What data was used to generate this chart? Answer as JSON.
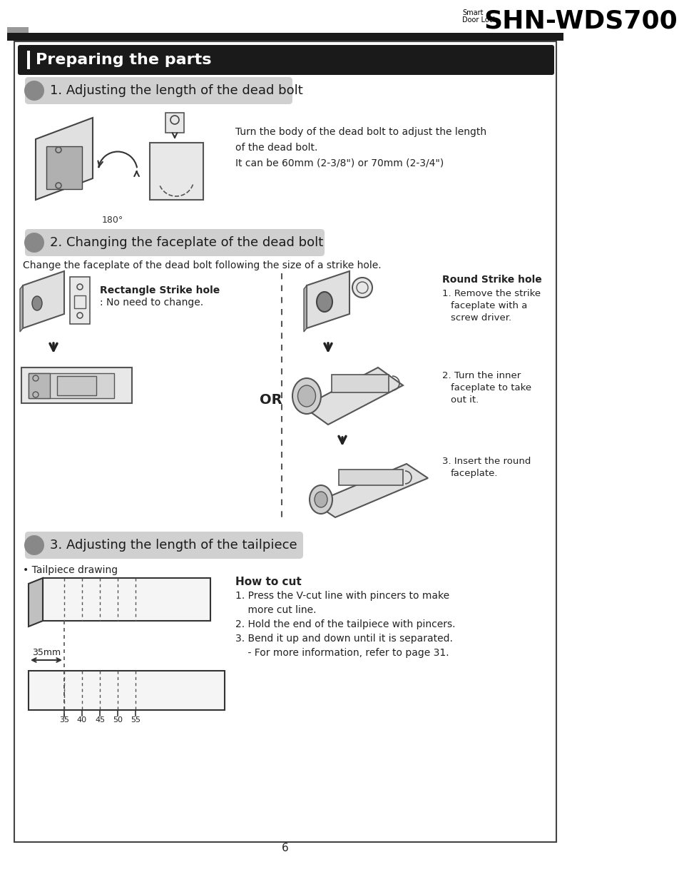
{
  "page_num": "6",
  "header_small_line1": "Smart",
  "header_small_line2": "Door Lock",
  "header_large": "SHN-WDS700",
  "section_title": "Preparing the parts",
  "sub1_title": "1. Adjusting the length of the dead bolt",
  "sub1_text": [
    "Turn the body of the dead bolt to adjust the length",
    "of the dead bolt.",
    "It can be 60mm (2-3/8\") or 70mm (2-3/4\")"
  ],
  "sub1_angle": "180°",
  "sub2_title": "2. Changing the faceplate of the dead bolt",
  "sub2_intro": "Change the faceplate of the dead bolt following the size of a strike hole.",
  "rect_label1": "Rectangle Strike hole",
  "rect_label2": ": No need to change.",
  "or_text": "OR",
  "round_label": "Round Strike hole",
  "round_steps": [
    "1. Remove the strike",
    "   faceplate with a",
    "   screw driver.",
    "2. Turn the inner",
    "   faceplate to take",
    "   out it.",
    "3. Insert the round",
    "   faceplate."
  ],
  "sub3_title": "3. Adjusting the length of the tailpiece",
  "tailpiece_label": "• Tailpiece drawing",
  "howtocut_title": "How to cut",
  "howtocut_steps": [
    "1. Press the V-cut line with pincers to make",
    "    more cut line.",
    "2. Hold the end of the tailpiece with pincers.",
    "3. Bend it up and down until it is separated.",
    "    - For more information, refer to page 31."
  ],
  "ruler_label": "35mm",
  "ruler_ticks": [
    "35",
    "40",
    "45",
    "50",
    "55"
  ],
  "bg_color": "#ffffff",
  "dark_color": "#1a1a1a",
  "gray_light": "#d4d4d4",
  "gray_mid": "#888888",
  "text_color": "#222222"
}
